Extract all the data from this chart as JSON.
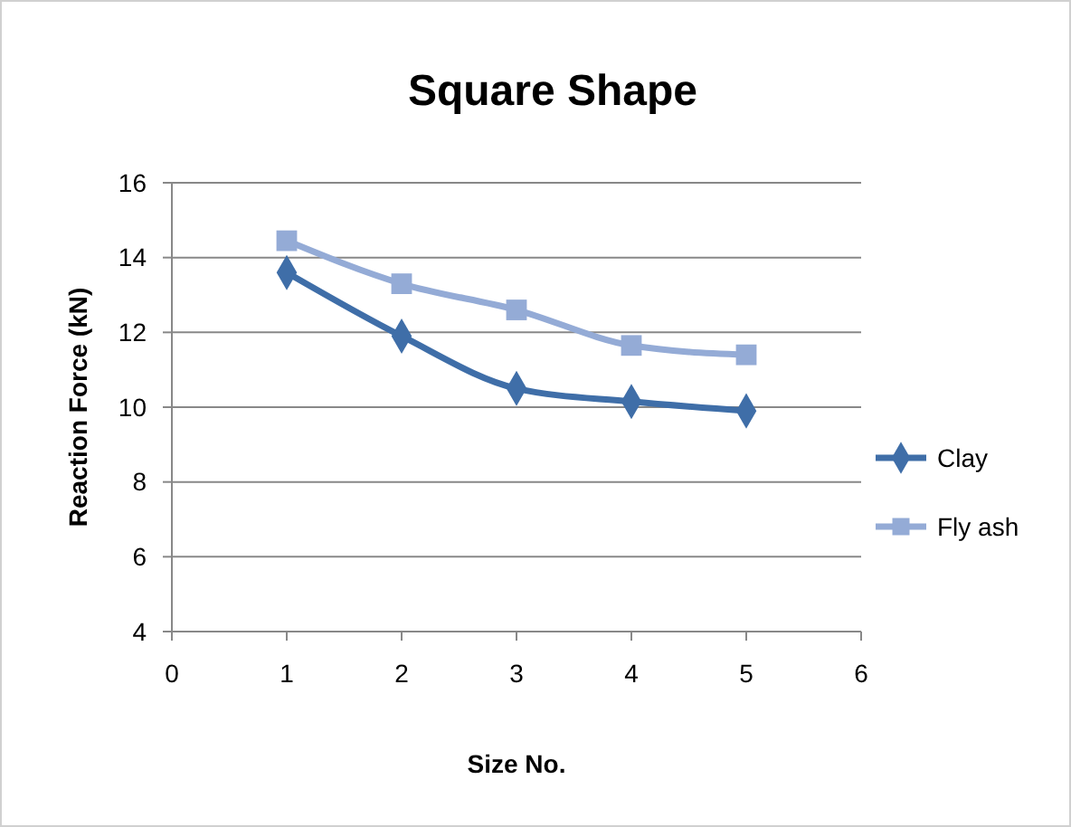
{
  "chart_data": {
    "type": "line",
    "title": "Square Shape",
    "xlabel": "Size No.",
    "ylabel": "Reaction Force (kN)",
    "x": [
      1,
      2,
      3,
      4,
      5
    ],
    "series": [
      {
        "name": "Clay",
        "color": "#3f6ea8",
        "values": [
          13.6,
          11.9,
          10.5,
          10.15,
          9.9
        ],
        "marker": "diamond"
      },
      {
        "name": "Fly ash",
        "color": "#94abd6",
        "values": [
          14.45,
          13.3,
          12.6,
          11.65,
          11.4
        ],
        "marker": "square"
      }
    ],
    "xlim": [
      0,
      6
    ],
    "xticks": [
      0,
      1,
      2,
      3,
      4,
      5,
      6
    ],
    "ylim": [
      4,
      16
    ],
    "yticks": [
      4,
      6,
      8,
      10,
      12,
      14,
      16
    ],
    "grid": "y",
    "legend": "right"
  }
}
